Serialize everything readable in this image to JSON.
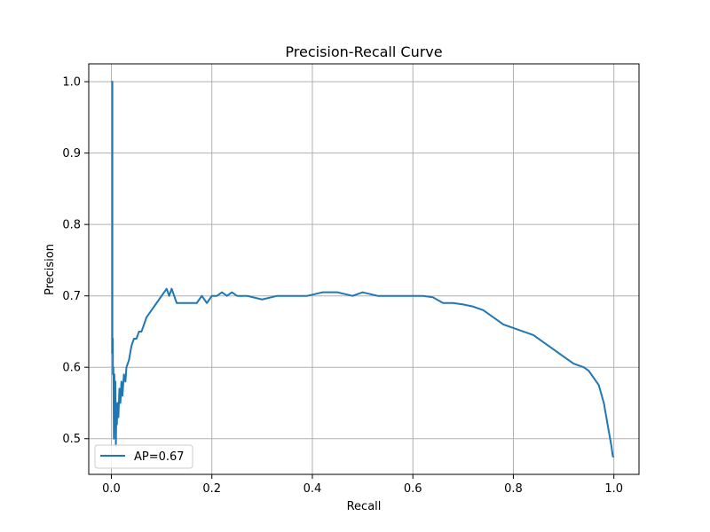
{
  "chart_data": {
    "type": "line",
    "title": "Precision-Recall Curve",
    "xlabel": "Recall",
    "ylabel": "Precision",
    "xlim": [
      -0.045,
      1.05
    ],
    "ylim": [
      0.45,
      1.025
    ],
    "xticks": [
      0.0,
      0.2,
      0.4,
      0.6,
      0.8,
      1.0
    ],
    "xtick_labels": [
      "0.0",
      "0.2",
      "0.4",
      "0.6",
      "0.8",
      "1.0"
    ],
    "yticks": [
      0.5,
      0.6,
      0.7,
      0.8,
      0.9,
      1.0
    ],
    "ytick_labels": [
      "0.5",
      "0.6",
      "0.7",
      "0.8",
      "0.9",
      "1.0"
    ],
    "grid": true,
    "legend_position": "lower-left",
    "series": [
      {
        "name": "AP=0.67",
        "color": "#1f77b4",
        "x": [
          0.0,
          0.001,
          0.002,
          0.002,
          0.003,
          0.003,
          0.004,
          0.005,
          0.006,
          0.007,
          0.008,
          0.009,
          0.01,
          0.011,
          0.012,
          0.014,
          0.016,
          0.018,
          0.02,
          0.022,
          0.025,
          0.028,
          0.03,
          0.035,
          0.04,
          0.045,
          0.05,
          0.055,
          0.06,
          0.065,
          0.07,
          0.08,
          0.09,
          0.1,
          0.11,
          0.115,
          0.12,
          0.125,
          0.13,
          0.14,
          0.15,
          0.16,
          0.17,
          0.18,
          0.19,
          0.2,
          0.21,
          0.22,
          0.23,
          0.24,
          0.25,
          0.27,
          0.3,
          0.33,
          0.36,
          0.39,
          0.42,
          0.45,
          0.48,
          0.5,
          0.53,
          0.56,
          0.59,
          0.62,
          0.64,
          0.66,
          0.68,
          0.7,
          0.72,
          0.74,
          0.76,
          0.78,
          0.8,
          0.82,
          0.84,
          0.86,
          0.88,
          0.9,
          0.92,
          0.94,
          0.95,
          0.96,
          0.97,
          0.98,
          0.985,
          0.99,
          0.995,
          0.998,
          1.0
        ],
        "y": [
          1.0,
          1.0,
          1.0,
          0.62,
          0.64,
          0.59,
          0.6,
          0.5,
          0.59,
          0.53,
          0.58,
          0.49,
          0.54,
          0.52,
          0.55,
          0.53,
          0.57,
          0.55,
          0.58,
          0.56,
          0.59,
          0.58,
          0.6,
          0.61,
          0.63,
          0.64,
          0.64,
          0.65,
          0.65,
          0.66,
          0.67,
          0.68,
          0.69,
          0.7,
          0.71,
          0.7,
          0.71,
          0.7,
          0.69,
          0.69,
          0.69,
          0.69,
          0.69,
          0.7,
          0.69,
          0.7,
          0.7,
          0.705,
          0.7,
          0.705,
          0.7,
          0.7,
          0.695,
          0.7,
          0.7,
          0.7,
          0.705,
          0.705,
          0.7,
          0.705,
          0.7,
          0.7,
          0.7,
          0.7,
          0.698,
          0.69,
          0.69,
          0.688,
          0.685,
          0.68,
          0.67,
          0.66,
          0.655,
          0.65,
          0.645,
          0.635,
          0.625,
          0.615,
          0.605,
          0.6,
          0.595,
          0.585,
          0.575,
          0.55,
          0.53,
          0.51,
          0.49,
          0.475,
          0.475
        ]
      }
    ]
  }
}
